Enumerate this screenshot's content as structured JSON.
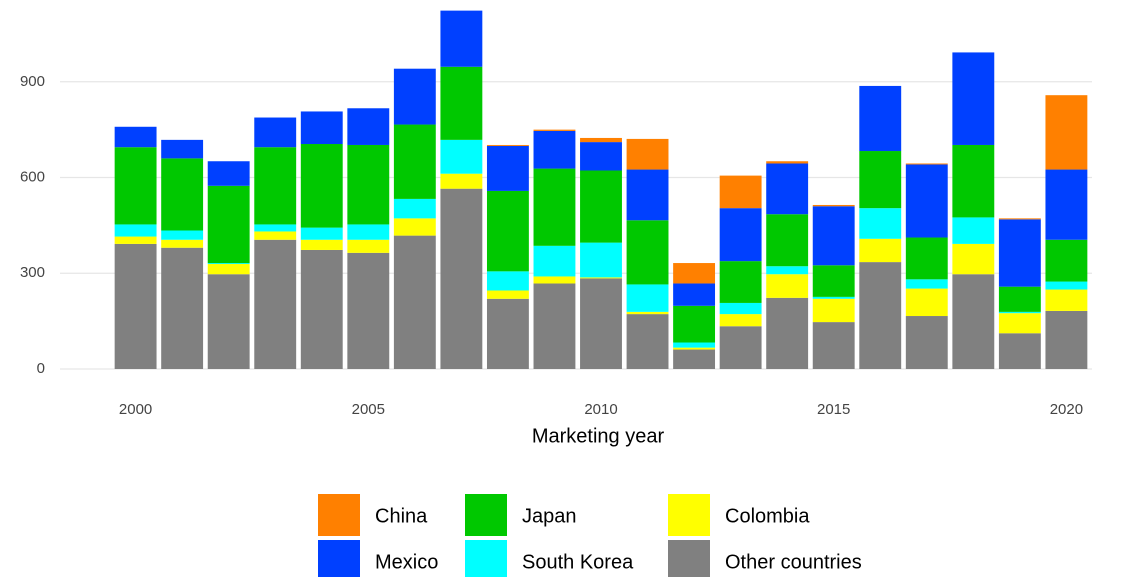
{
  "chart_data": {
    "type": "stacked_bar",
    "x_label": "Marketing year",
    "x": [
      2000,
      2001,
      2002,
      2003,
      2004,
      2005,
      2006,
      2007,
      2008,
      2009,
      2010,
      2011,
      2012,
      2013,
      2014,
      2015,
      2016,
      2017,
      2018,
      2019,
      2020
    ],
    "xlim": [
      1999.45,
      2020.55
    ],
    "xticks": [
      2000,
      2005,
      2010,
      2015,
      2020
    ],
    "ylim": [
      0,
      1150
    ],
    "yticks": [
      0,
      300,
      600,
      900
    ],
    "grid": true,
    "legend": "bottom",
    "series": [
      {
        "name": "China",
        "color": "#ff8000",
        "values": [
          0,
          0,
          0,
          0,
          0,
          0,
          0,
          0,
          3,
          4,
          13,
          96,
          64,
          102,
          7,
          4,
          0,
          3,
          0,
          3,
          233
        ]
      },
      {
        "name": "Mexico",
        "color": "#0040ff",
        "values": [
          64,
          58,
          77,
          93,
          102,
          115,
          175,
          176,
          141,
          118,
          89,
          159,
          70,
          166,
          159,
          185,
          204,
          229,
          290,
          211,
          220
        ]
      },
      {
        "name": "Japan",
        "color": "#00c800",
        "values": [
          242,
          226,
          242,
          242,
          262,
          249,
          233,
          229,
          252,
          242,
          226,
          201,
          115,
          131,
          163,
          99,
          179,
          131,
          227,
          79,
          131
        ]
      },
      {
        "name": "South Korea",
        "color": "#00ffff",
        "values": [
          38,
          29,
          3,
          22,
          38,
          48,
          61,
          106,
          60,
          96,
          109,
          86,
          16,
          35,
          25,
          6,
          96,
          29,
          83,
          4,
          25
        ]
      },
      {
        "name": "Colombia",
        "color": "#ffff00",
        "values": [
          23,
          25,
          32,
          26,
          32,
          41,
          54,
          47,
          26,
          22,
          3,
          7,
          6,
          38,
          74,
          73,
          73,
          86,
          95,
          63,
          67
        ]
      },
      {
        "name": "Other countries",
        "color": "#808080",
        "values": [
          392,
          380,
          297,
          405,
          373,
          364,
          418,
          565,
          220,
          268,
          284,
          172,
          61,
          134,
          223,
          147,
          335,
          166,
          297,
          112,
          182
        ]
      }
    ]
  }
}
